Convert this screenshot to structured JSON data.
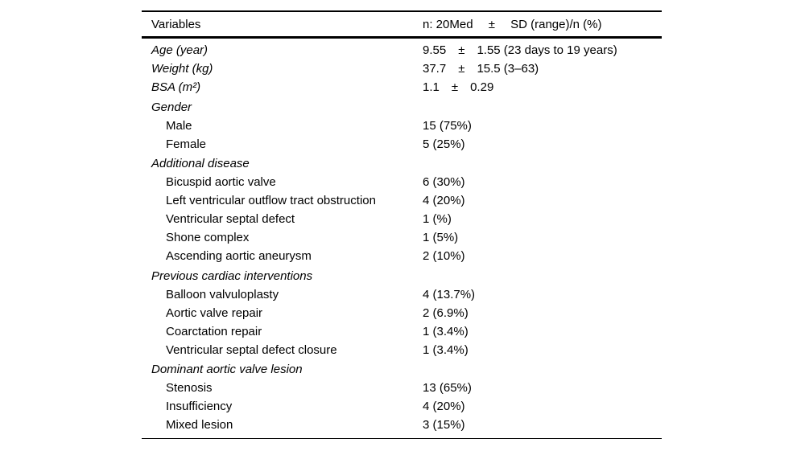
{
  "colors": {
    "text": "#000000",
    "rule": "#000000",
    "background": "#ffffff"
  },
  "table": {
    "header": {
      "col1": "Variables",
      "col2_parts": [
        "n: 20Med",
        "±",
        "SD (range)/n (%)"
      ]
    },
    "rows": [
      {
        "label": "Age (year)",
        "style": "var",
        "value": [
          "9.55",
          "±",
          "1.55 (23 days to 19 years)"
        ]
      },
      {
        "label": "Weight (kg)",
        "style": "var",
        "value": [
          "37.7",
          "±",
          "15.5 (3–63)"
        ]
      },
      {
        "label": "BSA (m²)",
        "style": "var",
        "value": [
          "1.1",
          "±",
          "0.29"
        ]
      },
      {
        "label": "Gender",
        "style": "section",
        "value": []
      },
      {
        "label": "Male",
        "style": "item",
        "value": [
          "15 (75%)"
        ]
      },
      {
        "label": "Female",
        "style": "item",
        "value": [
          "5 (25%)"
        ]
      },
      {
        "label": "Additional disease",
        "style": "section",
        "value": []
      },
      {
        "label": "Bicuspid aortic valve",
        "style": "item",
        "value": [
          "6 (30%)"
        ]
      },
      {
        "label": "Left ventricular outflow tract obstruction",
        "style": "item",
        "value": [
          "4 (20%)"
        ]
      },
      {
        "label": "Ventricular septal defect",
        "style": "item",
        "value": [
          "1 (%)"
        ]
      },
      {
        "label": "Shone complex",
        "style": "item",
        "value": [
          "1 (5%)"
        ]
      },
      {
        "label": "Ascending aortic aneurysm",
        "style": "item",
        "value": [
          "2 (10%)"
        ]
      },
      {
        "label": "Previous cardiac interventions",
        "style": "section",
        "value": []
      },
      {
        "label": "Balloon valvuloplasty",
        "style": "item",
        "value": [
          "4 (13.7%)"
        ]
      },
      {
        "label": "Aortic valve repair",
        "style": "item",
        "value": [
          "2 (6.9%)"
        ]
      },
      {
        "label": "Coarctation repair",
        "style": "item",
        "value": [
          "1 (3.4%)"
        ]
      },
      {
        "label": "Ventricular septal defect closure",
        "style": "item",
        "value": [
          "1 (3.4%)"
        ]
      },
      {
        "label": "Dominant aortic valve lesion",
        "style": "section",
        "value": []
      },
      {
        "label": "Stenosis",
        "style": "item",
        "value": [
          "13 (65%)"
        ]
      },
      {
        "label": "Insufficiency",
        "style": "item",
        "value": [
          "4 (20%)"
        ]
      },
      {
        "label": "Mixed lesion",
        "style": "item",
        "value": [
          "3 (15%)"
        ]
      }
    ]
  }
}
